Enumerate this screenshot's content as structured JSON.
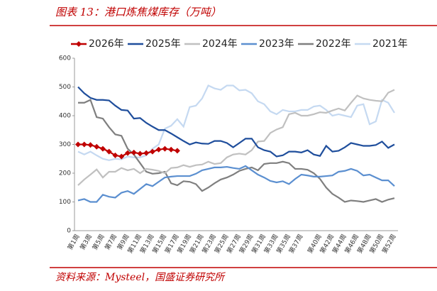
{
  "chart_data": {
    "type": "line",
    "title": "图表 13：港口炼焦煤库存（万吨）",
    "source": "资料来源：Mysteel，国盛证券研究所",
    "categories": [
      "第1周",
      null,
      "第3周",
      null,
      "第5周",
      null,
      "第7周",
      null,
      "第9周",
      null,
      "第11周",
      null,
      "第13周",
      null,
      "第15周",
      null,
      "第17周",
      null,
      "第19周",
      null,
      "第21周",
      null,
      "第23周",
      null,
      "第25周",
      null,
      "第27周",
      null,
      "第29周",
      null,
      "第31周",
      null,
      "第33周",
      null,
      "第35周",
      null,
      "第37周",
      null,
      null,
      "第40周",
      null,
      "第42周",
      null,
      "第44周",
      null,
      "第46周",
      null,
      "第48周",
      null,
      "第50周",
      null,
      "第52周"
    ],
    "ylim": [
      0,
      600
    ],
    "yticks": [
      0,
      100,
      200,
      300,
      400,
      500,
      600
    ],
    "legend": "top",
    "series": [
      {
        "name": "2026年",
        "color": "#c00000",
        "marker": "diamond",
        "values": [
          300,
          300,
          298,
          292,
          285,
          275,
          262,
          258,
          270,
          272,
          268,
          270,
          275,
          282,
          285,
          282,
          278,
          null,
          null,
          null,
          null,
          null,
          null,
          null,
          null,
          null,
          null,
          null,
          null,
          null,
          null,
          null,
          null,
          null,
          null,
          null,
          null,
          null,
          null,
          null,
          null,
          null,
          null,
          null,
          null,
          null,
          null,
          null,
          null,
          null,
          null,
          null
        ]
      },
      {
        "name": "2025年",
        "color": "#1f4e9c",
        "values": [
          500,
          478,
          462,
          455,
          455,
          453,
          435,
          420,
          418,
          390,
          392,
          375,
          362,
          350,
          350,
          338,
          325,
          312,
          300,
          307,
          303,
          302,
          312,
          312,
          305,
          290,
          305,
          320,
          320,
          290,
          280,
          275,
          258,
          262,
          275,
          275,
          272,
          280,
          265,
          260,
          295,
          275,
          278,
          290,
          305,
          300,
          295,
          295,
          298,
          310,
          288,
          300
        ]
      },
      {
        "name": "2024年",
        "color": "#c0c0c0",
        "values": [
          158,
          178,
          195,
          213,
          185,
          205,
          205,
          218,
          210,
          215,
          200,
          215,
          212,
          208,
          200,
          218,
          220,
          228,
          222,
          228,
          230,
          240,
          232,
          235,
          255,
          265,
          268,
          265,
          280,
          310,
          312,
          340,
          352,
          360,
          405,
          410,
          400,
          400,
          405,
          412,
          410,
          418,
          425,
          418,
          445,
          470,
          460,
          455,
          452,
          450,
          480,
          490
        ]
      },
      {
        "name": "2023年",
        "color": "#5b8fd0",
        "values": [
          105,
          110,
          100,
          100,
          125,
          118,
          115,
          132,
          138,
          128,
          145,
          162,
          155,
          170,
          185,
          188,
          190,
          190,
          190,
          198,
          210,
          215,
          220,
          220,
          222,
          218,
          215,
          225,
          210,
          195,
          185,
          173,
          168,
          172,
          162,
          180,
          195,
          192,
          188,
          188,
          190,
          192,
          205,
          208,
          215,
          208,
          192,
          195,
          185,
          175,
          175,
          155
        ]
      },
      {
        "name": "2022年",
        "color": "#7f7f7f",
        "values": [
          445,
          445,
          455,
          395,
          390,
          360,
          335,
          330,
          285,
          265,
          235,
          205,
          198,
          200,
          205,
          165,
          158,
          172,
          170,
          162,
          138,
          150,
          165,
          178,
          185,
          195,
          208,
          215,
          220,
          210,
          232,
          235,
          235,
          240,
          235,
          215,
          215,
          212,
          200,
          180,
          150,
          128,
          115,
          100,
          105,
          103,
          100,
          105,
          110,
          100,
          108,
          113
        ]
      },
      {
        "name": "2021年",
        "color": "#c5d9f1",
        "values": [
          275,
          265,
          275,
          262,
          250,
          245,
          250,
          248,
          258,
          255,
          255,
          262,
          285,
          300,
          355,
          365,
          388,
          362,
          430,
          435,
          460,
          505,
          495,
          490,
          505,
          505,
          488,
          490,
          478,
          450,
          440,
          415,
          405,
          420,
          415,
          415,
          420,
          420,
          432,
          435,
          420,
          400,
          405,
          400,
          395,
          435,
          440,
          370,
          380,
          455,
          445,
          410
        ]
      }
    ]
  }
}
